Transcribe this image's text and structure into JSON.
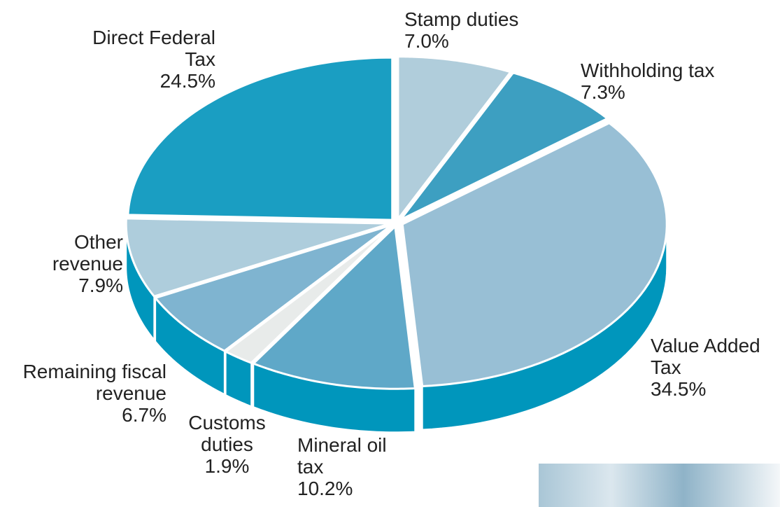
{
  "chart_data": {
    "type": "pie",
    "categories": [
      "Stamp duties",
      "Withholding tax",
      "Value Added Tax",
      "Mineral oil tax",
      "Customs duties",
      "Remaining fiscal revenue",
      "Other revenue",
      "Direct Federal Tax"
    ],
    "values": [
      7.0,
      7.3,
      34.5,
      10.2,
      1.9,
      6.7,
      7.9,
      24.5
    ],
    "value_labels": [
      "7.0%",
      "7.3%",
      "34.5%",
      "10.2%",
      "1.9%",
      "6.7%",
      "7.9%",
      "24.5%"
    ],
    "colors": [
      "#b0cddb",
      "#3d9fc1",
      "#98bfd5",
      "#5fa8c8",
      "#e8ebea",
      "#7fb4d0",
      "#aecddc",
      "#1a9ec2"
    ],
    "side_color": "#0096bc"
  }
}
